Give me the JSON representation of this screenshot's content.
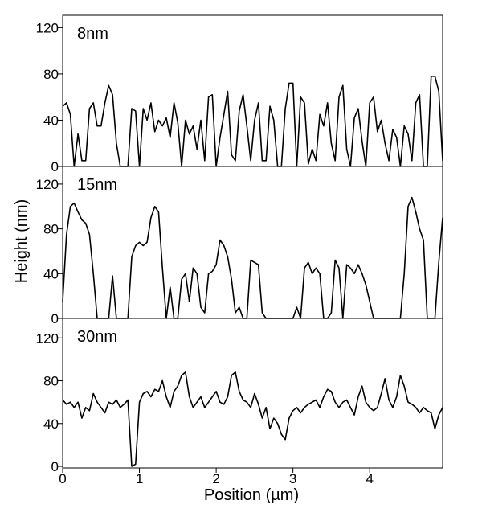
{
  "chart_data": {
    "type": "line",
    "xlabel": "Position (µm)",
    "ylabel": "Height (nm)",
    "xlim": [
      0,
      4.95
    ],
    "ylim": [
      0,
      130
    ],
    "x_ticks": [
      0,
      1,
      2,
      3,
      4
    ],
    "y_ticks": [
      0,
      40,
      80,
      120
    ],
    "panels": [
      {
        "label": "8nm",
        "series": {
          "x": [
            0,
            0.05,
            0.1,
            0.15,
            0.2,
            0.25,
            0.3,
            0.35,
            0.4,
            0.45,
            0.5,
            0.55,
            0.6,
            0.65,
            0.7,
            0.75,
            0.8,
            0.85,
            0.9,
            0.95,
            1.0,
            1.05,
            1.1,
            1.15,
            1.2,
            1.25,
            1.3,
            1.35,
            1.4,
            1.45,
            1.5,
            1.55,
            1.6,
            1.65,
            1.7,
            1.75,
            1.8,
            1.85,
            1.9,
            1.95,
            2.0,
            2.05,
            2.1,
            2.15,
            2.2,
            2.25,
            2.3,
            2.35,
            2.4,
            2.45,
            2.5,
            2.55,
            2.6,
            2.65,
            2.7,
            2.75,
            2.8,
            2.85,
            2.9,
            2.95,
            3.0,
            3.05,
            3.1,
            3.15,
            3.2,
            3.25,
            3.3,
            3.35,
            3.4,
            3.45,
            3.5,
            3.55,
            3.6,
            3.65,
            3.7,
            3.75,
            3.8,
            3.85,
            3.9,
            3.95,
            4.0,
            4.05,
            4.1,
            4.15,
            4.2,
            4.25,
            4.3,
            4.35,
            4.4,
            4.45,
            4.5,
            4.55,
            4.6,
            4.65,
            4.7,
            4.75,
            4.8,
            4.85,
            4.9,
            4.95
          ],
          "y": [
            52,
            55,
            45,
            0,
            28,
            5,
            5,
            50,
            55,
            35,
            35,
            55,
            70,
            62,
            20,
            0,
            0,
            0,
            50,
            48,
            0,
            50,
            40,
            55,
            30,
            40,
            35,
            42,
            25,
            55,
            38,
            0,
            40,
            28,
            35,
            15,
            40,
            5,
            60,
            62,
            0,
            25,
            45,
            65,
            10,
            5,
            48,
            62,
            35,
            5,
            40,
            55,
            5,
            5,
            52,
            40,
            0,
            0,
            50,
            72,
            72,
            0,
            60,
            55,
            2,
            15,
            5,
            45,
            35,
            55,
            20,
            5,
            60,
            70,
            15,
            0,
            42,
            50,
            22,
            0,
            55,
            60,
            30,
            40,
            20,
            5,
            32,
            25,
            0,
            35,
            28,
            5,
            55,
            62,
            0,
            0,
            78,
            78,
            65,
            5
          ]
        }
      },
      {
        "label": "15nm",
        "series": {
          "x": [
            0,
            0.05,
            0.1,
            0.15,
            0.2,
            0.25,
            0.3,
            0.35,
            0.4,
            0.45,
            0.5,
            0.55,
            0.6,
            0.65,
            0.7,
            0.75,
            0.8,
            0.85,
            0.9,
            0.95,
            1.0,
            1.05,
            1.1,
            1.15,
            1.2,
            1.25,
            1.3,
            1.35,
            1.4,
            1.45,
            1.5,
            1.55,
            1.6,
            1.65,
            1.7,
            1.75,
            1.8,
            1.85,
            1.9,
            1.95,
            2.0,
            2.05,
            2.1,
            2.15,
            2.2,
            2.25,
            2.3,
            2.35,
            2.4,
            2.45,
            2.5,
            2.55,
            2.6,
            2.65,
            2.7,
            2.75,
            2.8,
            2.85,
            2.9,
            2.95,
            3.0,
            3.05,
            3.1,
            3.15,
            3.2,
            3.25,
            3.3,
            3.35,
            3.4,
            3.45,
            3.5,
            3.55,
            3.6,
            3.65,
            3.7,
            3.75,
            3.8,
            3.85,
            3.9,
            3.95,
            4.0,
            4.05,
            4.1,
            4.15,
            4.2,
            4.25,
            4.3,
            4.35,
            4.4,
            4.45,
            4.5,
            4.55,
            4.6,
            4.65,
            4.7,
            4.75,
            4.8,
            4.85,
            4.9,
            4.95
          ],
          "y": [
            15,
            75,
            100,
            103,
            95,
            88,
            85,
            75,
            40,
            0,
            0,
            0,
            0,
            38,
            0,
            0,
            0,
            0,
            55,
            65,
            68,
            65,
            68,
            90,
            100,
            95,
            45,
            0,
            28,
            0,
            0,
            35,
            40,
            15,
            45,
            40,
            10,
            5,
            40,
            42,
            48,
            70,
            65,
            55,
            35,
            5,
            10,
            0,
            0,
            52,
            50,
            48,
            5,
            0,
            0,
            0,
            0,
            0,
            0,
            0,
            0,
            10,
            0,
            45,
            50,
            40,
            45,
            40,
            0,
            0,
            5,
            52,
            45,
            0,
            48,
            45,
            40,
            48,
            40,
            30,
            15,
            0,
            0,
            0,
            0,
            0,
            0,
            0,
            0,
            40,
            100,
            108,
            95,
            80,
            70,
            0,
            0,
            0,
            50,
            90
          ]
        }
      },
      {
        "label": "30nm",
        "series": {
          "x": [
            0,
            0.05,
            0.1,
            0.15,
            0.2,
            0.25,
            0.3,
            0.35,
            0.4,
            0.45,
            0.5,
            0.55,
            0.6,
            0.65,
            0.7,
            0.75,
            0.8,
            0.85,
            0.9,
            0.95,
            1.0,
            1.05,
            1.1,
            1.15,
            1.2,
            1.25,
            1.3,
            1.35,
            1.4,
            1.45,
            1.5,
            1.55,
            1.6,
            1.65,
            1.7,
            1.75,
            1.8,
            1.85,
            1.9,
            1.95,
            2.0,
            2.05,
            2.1,
            2.15,
            2.2,
            2.25,
            2.3,
            2.35,
            2.4,
            2.45,
            2.5,
            2.55,
            2.6,
            2.65,
            2.7,
            2.75,
            2.8,
            2.85,
            2.9,
            2.95,
            3.0,
            3.05,
            3.1,
            3.15,
            3.2,
            3.25,
            3.3,
            3.35,
            3.4,
            3.45,
            3.5,
            3.55,
            3.6,
            3.65,
            3.7,
            3.75,
            3.8,
            3.85,
            3.9,
            3.95,
            4.0,
            4.05,
            4.1,
            4.15,
            4.2,
            4.25,
            4.3,
            4.35,
            4.4,
            4.45,
            4.5,
            4.55,
            4.6,
            4.65,
            4.7,
            4.75,
            4.8,
            4.85,
            4.9,
            4.95
          ],
          "y": [
            62,
            58,
            60,
            55,
            60,
            45,
            55,
            52,
            68,
            60,
            55,
            50,
            60,
            58,
            62,
            55,
            58,
            62,
            0,
            2,
            60,
            68,
            70,
            65,
            72,
            70,
            80,
            65,
            55,
            70,
            75,
            85,
            88,
            65,
            55,
            60,
            65,
            55,
            60,
            65,
            70,
            60,
            58,
            65,
            85,
            88,
            70,
            62,
            60,
            55,
            68,
            58,
            45,
            55,
            35,
            45,
            40,
            30,
            25,
            45,
            52,
            55,
            50,
            55,
            58,
            60,
            62,
            55,
            65,
            72,
            70,
            60,
            55,
            60,
            62,
            55,
            48,
            65,
            75,
            60,
            55,
            52,
            55,
            68,
            82,
            62,
            55,
            65,
            85,
            75,
            60,
            58,
            55,
            50,
            55,
            52,
            50,
            35,
            48,
            55
          ]
        }
      }
    ]
  }
}
